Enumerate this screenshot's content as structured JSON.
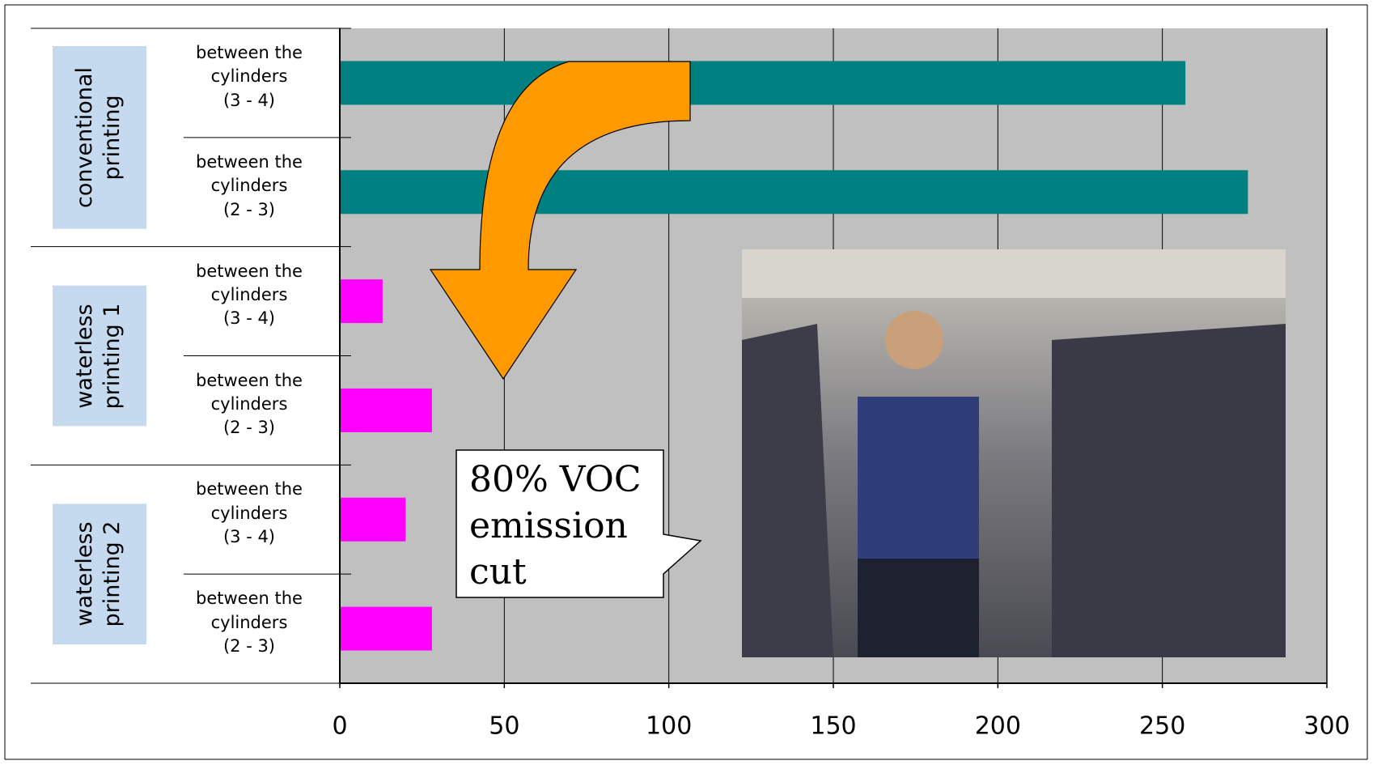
{
  "chart_data": {
    "type": "bar",
    "orientation": "horizontal",
    "groups": [
      {
        "name": "conventional\nprinting",
        "color": "#008080",
        "categories": [
          "between the\ncylinders\n(3 - 4)",
          "between the\ncylinders\n(2 - 3)"
        ],
        "values": [
          257,
          276
        ]
      },
      {
        "name": "waterless\nprinting 1",
        "color": "#ff00ff",
        "categories": [
          "between the\ncylinders\n(3 - 4)",
          "between the\ncylinders\n(2 - 3)"
        ],
        "values": [
          13,
          28
        ]
      },
      {
        "name": "waterless\nprinting 2",
        "color": "#ff00ff",
        "categories": [
          "between the\ncylinders\n(3 - 4)",
          "between the\ncylinders\n(2 - 3)"
        ],
        "values": [
          20,
          28
        ]
      }
    ],
    "xlim": [
      0,
      300
    ],
    "xticks": [
      0,
      50,
      100,
      150,
      200,
      250,
      300
    ],
    "grid": true,
    "plot_background": "#c0c0c0",
    "annotation": "80% VOC\nemission\ncut"
  }
}
